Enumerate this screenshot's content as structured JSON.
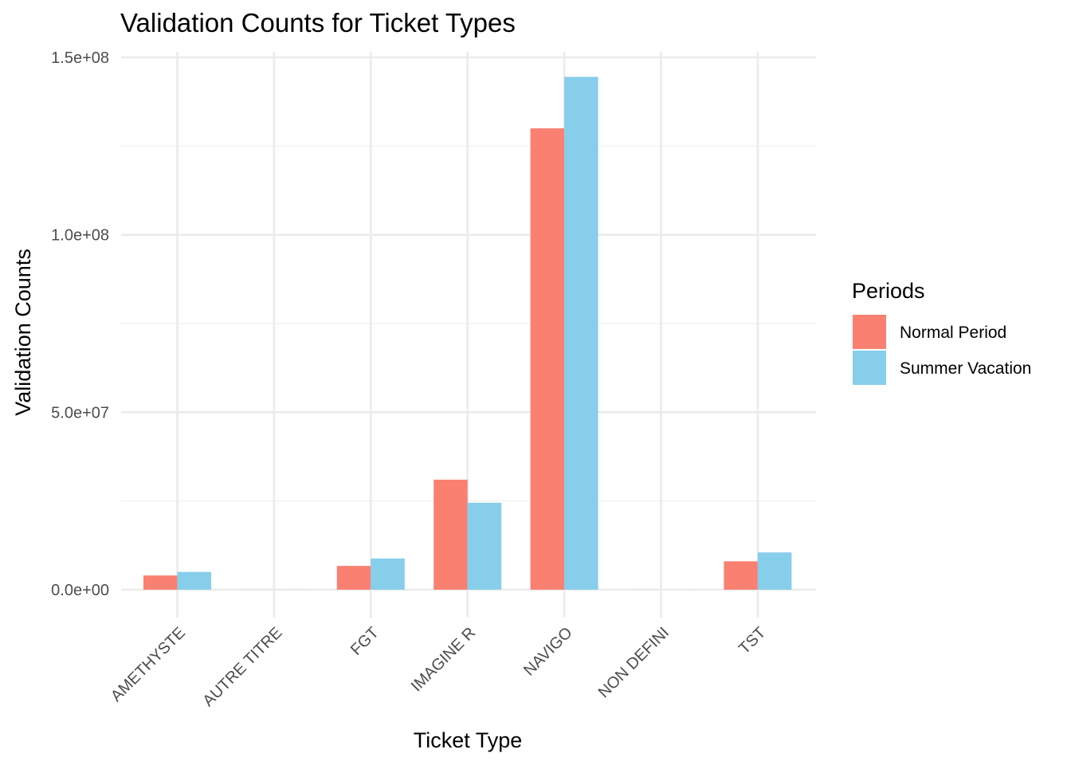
{
  "chart_data": {
    "type": "bar",
    "title": "Validation Counts for Ticket Types",
    "xlabel": "Ticket Type",
    "ylabel": "Validation Counts",
    "categories": [
      "AMETHYSTE",
      "AUTRE TITRE",
      "FGT",
      "IMAGINE R",
      "NAVIGO",
      "NON DEFINI",
      "TST"
    ],
    "series": [
      {
        "name": "Normal Period",
        "color": "#FA8072",
        "values": [
          4000000,
          20000,
          6700000,
          31000000,
          130000000,
          10000,
          8000000
        ]
      },
      {
        "name": "Summer Vacation",
        "color": "#87CEEB",
        "values": [
          5000000,
          20000,
          8800000,
          24500000,
          144500000,
          10000,
          10500000
        ]
      }
    ],
    "ylim": [
      0,
      150000000
    ],
    "yticks": [
      0,
      50000000,
      100000000,
      150000000
    ],
    "ytick_labels": [
      "0.0e+00",
      "5.0e+07",
      "1.0e+08",
      "1.5e+08"
    ],
    "grid": true,
    "legend": {
      "title": "Periods",
      "position": "right"
    }
  }
}
